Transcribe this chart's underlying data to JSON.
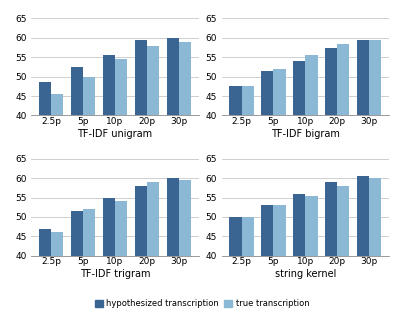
{
  "subplots": [
    {
      "title": "TF-IDF unigram",
      "categories": [
        "2.5p",
        "5p",
        "10p",
        "20p",
        "30p"
      ],
      "hyp": [
        48.5,
        52.5,
        55.5,
        59.5,
        60.0
      ],
      "true": [
        45.5,
        50.0,
        54.5,
        58.0,
        59.0
      ]
    },
    {
      "title": "TF-IDF bigram",
      "categories": [
        "2.5p",
        "5p",
        "10p",
        "20p",
        "30p"
      ],
      "hyp": [
        47.5,
        51.5,
        54.0,
        57.5,
        59.5
      ],
      "true": [
        47.5,
        52.0,
        55.5,
        58.5,
        59.5
      ]
    },
    {
      "title": "TF-IDF trigram",
      "categories": [
        "2.5p",
        "5p",
        "10p",
        "20p",
        "30p"
      ],
      "hyp": [
        47.0,
        51.5,
        55.0,
        58.0,
        60.0
      ],
      "true": [
        46.0,
        52.0,
        54.0,
        59.0,
        59.5
      ]
    },
    {
      "title": "string kernel",
      "categories": [
        "2.5p",
        "5p",
        "10p",
        "20p",
        "30p"
      ],
      "hyp": [
        50.0,
        53.0,
        56.0,
        59.0,
        60.5
      ],
      "true": [
        50.0,
        53.0,
        55.5,
        58.0,
        60.0
      ]
    }
  ],
  "ylim": [
    40,
    65
  ],
  "yticks": [
    40,
    45,
    50,
    55,
    60,
    65
  ],
  "color_hyp": "#3A6593",
  "color_true": "#8BB8D4",
  "legend_labels": [
    "hypothesized transcription",
    "true transcription"
  ],
  "bar_width": 0.38,
  "figsize": [
    4.04,
    3.16
  ],
  "dpi": 100,
  "grid_color": "#C8C8C8",
  "title_fontsize": 7.0,
  "tick_fontsize": 6.5
}
